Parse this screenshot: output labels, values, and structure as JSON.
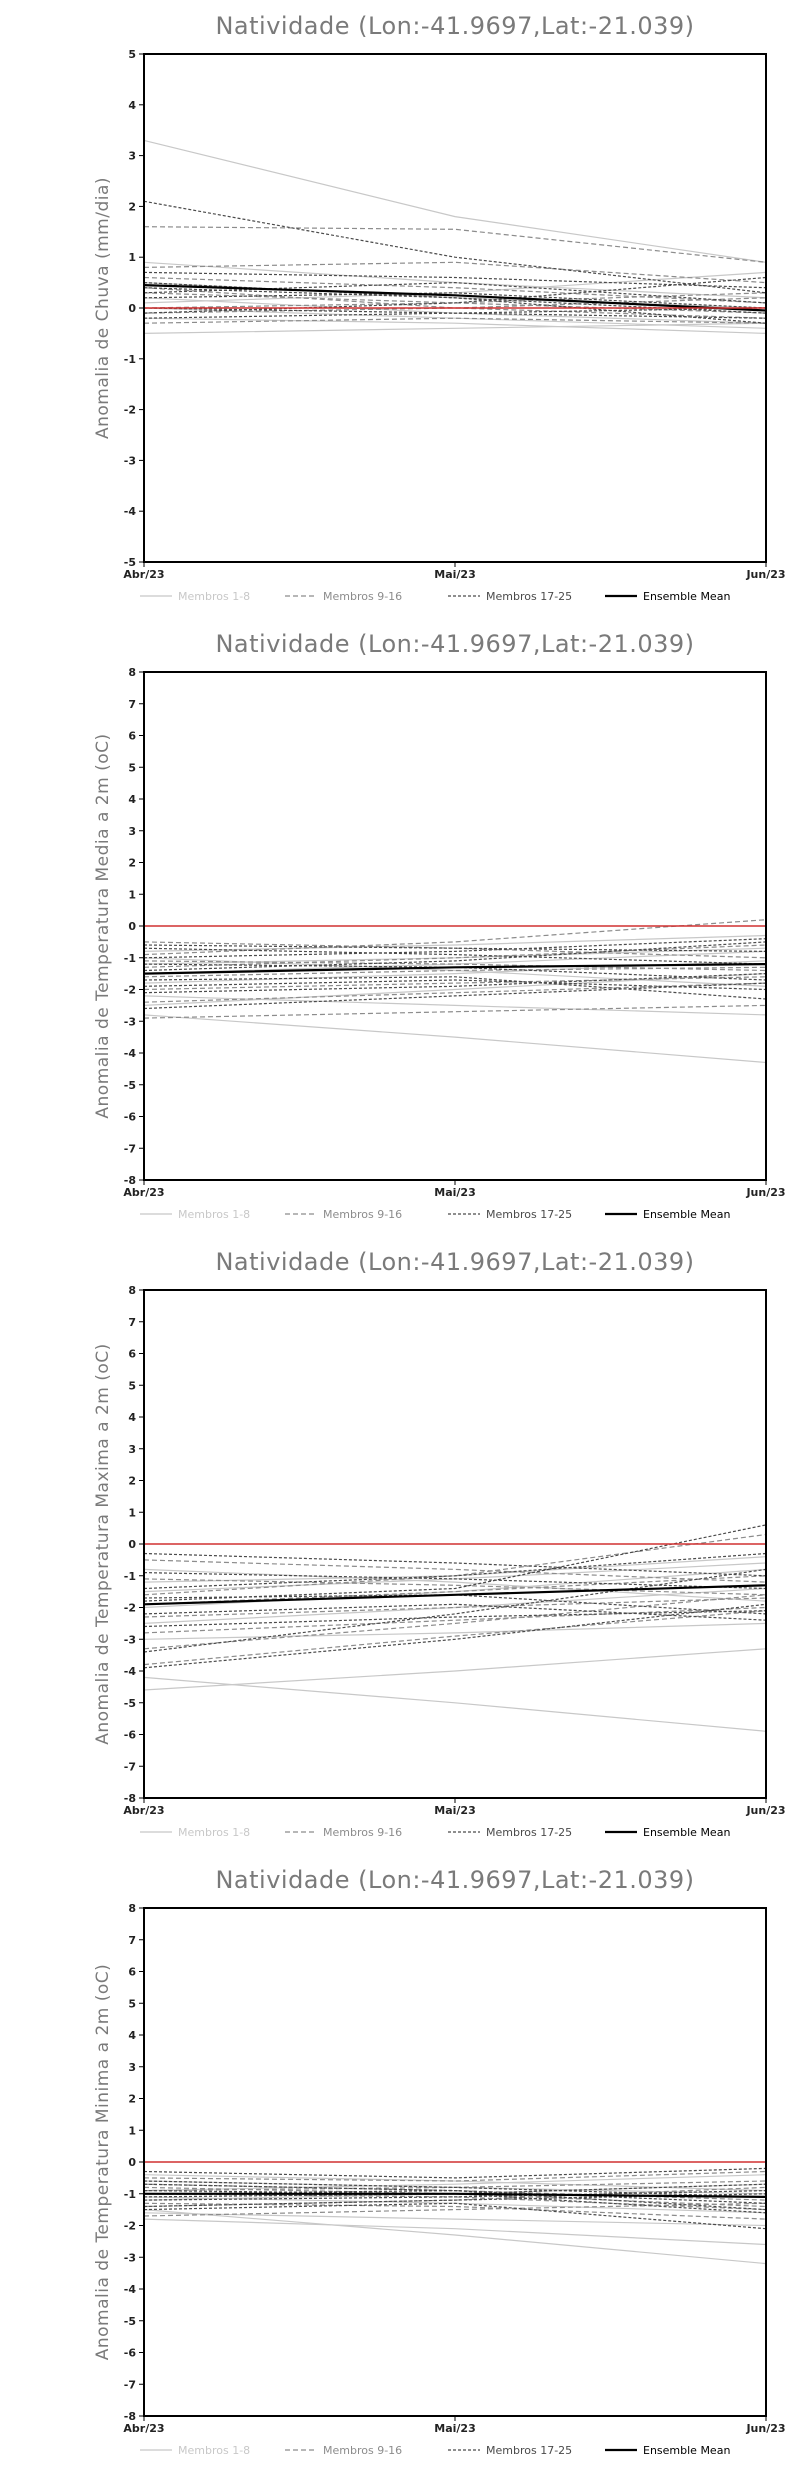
{
  "chart_data": [
    {
      "type": "line",
      "title": "Natividade (Lon:-41.9697,Lat:-21.039)",
      "ylabel": "Anomalia de Chuva (mm/dia)",
      "xlabel": "",
      "x": [
        "Abr/23",
        "Mai/23",
        "Jun/23"
      ],
      "ylim": [
        -5,
        5
      ],
      "yticks": [
        -5,
        -4,
        -3,
        -2,
        -1,
        0,
        1,
        2,
        3,
        4,
        5
      ],
      "legend": [
        "Membros 1-8",
        "Membros 9-16",
        "Membros 17-25",
        "Ensemble Mean"
      ],
      "series": [
        {
          "group": 0,
          "values": [
            3.3,
            1.8,
            0.9
          ]
        },
        {
          "group": 0,
          "values": [
            0.9,
            0.5,
            0.2
          ]
        },
        {
          "group": 0,
          "values": [
            0.2,
            -0.1,
            -0.3
          ]
        },
        {
          "group": 0,
          "values": [
            -0.2,
            -0.3,
            -0.5
          ]
        },
        {
          "group": 0,
          "values": [
            0.5,
            0.2,
            0.0
          ]
        },
        {
          "group": 0,
          "values": [
            -0.5,
            -0.4,
            -0.3
          ]
        },
        {
          "group": 0,
          "values": [
            0.1,
            0.3,
            0.7
          ]
        },
        {
          "group": 0,
          "values": [
            0.0,
            -0.2,
            -0.4
          ]
        },
        {
          "group": 1,
          "values": [
            1.6,
            1.55,
            0.9
          ]
        },
        {
          "group": 1,
          "values": [
            0.6,
            0.4,
            0.1
          ]
        },
        {
          "group": 1,
          "values": [
            0.3,
            0.1,
            -0.1
          ]
        },
        {
          "group": 1,
          "values": [
            -0.1,
            0.0,
            0.2
          ]
        },
        {
          "group": 1,
          "values": [
            0.8,
            0.9,
            0.5
          ]
        },
        {
          "group": 1,
          "values": [
            -0.3,
            -0.2,
            -0.3
          ]
        },
        {
          "group": 1,
          "values": [
            0.4,
            0.0,
            -0.2
          ]
        },
        {
          "group": 1,
          "values": [
            0.0,
            0.1,
            0.3
          ]
        },
        {
          "group": 2,
          "values": [
            2.1,
            1.0,
            0.3
          ]
        },
        {
          "group": 2,
          "values": [
            0.7,
            0.6,
            0.4
          ]
        },
        {
          "group": 2,
          "values": [
            0.2,
            0.3,
            0.0
          ]
        },
        {
          "group": 2,
          "values": [
            -0.1,
            0.1,
            0.6
          ]
        },
        {
          "group": 2,
          "values": [
            0.5,
            0.2,
            -0.1
          ]
        },
        {
          "group": 2,
          "values": [
            0.0,
            -0.1,
            -0.2
          ]
        },
        {
          "group": 2,
          "values": [
            0.3,
            0.5,
            0.1
          ]
        },
        {
          "group": 2,
          "values": [
            -0.2,
            -0.1,
            0.0
          ]
        },
        {
          "group": 2,
          "values": [
            0.4,
            0.2,
            -0.3
          ]
        },
        {
          "group": 3,
          "values": [
            0.45,
            0.25,
            -0.05
          ]
        }
      ]
    },
    {
      "type": "line",
      "title": "Natividade (Lon:-41.9697,Lat:-21.039)",
      "ylabel": "Anomalia de Temperatura Media a 2m (oC)",
      "xlabel": "",
      "x": [
        "Abr/23",
        "Mai/23",
        "Jun/23"
      ],
      "ylim": [
        -8,
        8
      ],
      "yticks": [
        -8,
        -7,
        -6,
        -5,
        -4,
        -3,
        -2,
        -1,
        0,
        1,
        2,
        3,
        4,
        5,
        6,
        7,
        8
      ],
      "legend": [
        "Membros 1-8",
        "Membros 9-16",
        "Membros 17-25",
        "Ensemble Mean"
      ],
      "series": [
        {
          "group": 0,
          "values": [
            -2.8,
            -3.5,
            -4.3
          ]
        },
        {
          "group": 0,
          "values": [
            -1.5,
            -1.2,
            -0.8
          ]
        },
        {
          "group": 0,
          "values": [
            -2.2,
            -2.5,
            -2.8
          ]
        },
        {
          "group": 0,
          "values": [
            -0.8,
            -0.6,
            -0.3
          ]
        },
        {
          "group": 0,
          "values": [
            -1.8,
            -1.5,
            -1.1
          ]
        },
        {
          "group": 0,
          "values": [
            -1.0,
            -1.4,
            -1.9
          ]
        },
        {
          "group": 0,
          "values": [
            -2.5,
            -2.0,
            -1.5
          ]
        },
        {
          "group": 0,
          "values": [
            -1.2,
            -1.0,
            -0.7
          ]
        },
        {
          "group": 1,
          "values": [
            -0.5,
            -0.7,
            -1.0
          ]
        },
        {
          "group": 1,
          "values": [
            -1.3,
            -1.0,
            -0.6
          ]
        },
        {
          "group": 1,
          "values": [
            -2.9,
            -2.7,
            -2.5
          ]
        },
        {
          "group": 1,
          "values": [
            -1.6,
            -1.4,
            -1.3
          ]
        },
        {
          "group": 1,
          "values": [
            -0.9,
            -0.5,
            0.2
          ]
        },
        {
          "group": 1,
          "values": [
            -2.0,
            -1.8,
            -1.6
          ]
        },
        {
          "group": 1,
          "values": [
            -1.1,
            -1.2,
            -1.4
          ]
        },
        {
          "group": 1,
          "values": [
            -2.4,
            -2.1,
            -1.8
          ]
        },
        {
          "group": 2,
          "values": [
            -0.7,
            -0.9,
            -1.2
          ]
        },
        {
          "group": 2,
          "values": [
            -1.4,
            -1.1,
            -0.5
          ]
        },
        {
          "group": 2,
          "values": [
            -2.6,
            -2.2,
            -1.8
          ]
        },
        {
          "group": 2,
          "values": [
            -1.9,
            -1.7,
            -2.0
          ]
        },
        {
          "group": 2,
          "values": [
            -1.0,
            -0.8,
            -0.4
          ]
        },
        {
          "group": 2,
          "values": [
            -1.7,
            -1.6,
            -2.3
          ]
        },
        {
          "group": 2,
          "values": [
            -0.6,
            -0.7,
            -0.8
          ]
        },
        {
          "group": 2,
          "values": [
            -2.1,
            -1.9,
            -1.5
          ]
        },
        {
          "group": 2,
          "values": [
            -1.2,
            -1.3,
            -1.7
          ]
        },
        {
          "group": 3,
          "values": [
            -1.5,
            -1.3,
            -1.2
          ]
        }
      ]
    },
    {
      "type": "line",
      "title": "Natividade (Lon:-41.9697,Lat:-21.039)",
      "ylabel": "Anomalia de Temperatura Maxima a 2m (oC)",
      "xlabel": "",
      "x": [
        "Abr/23",
        "Mai/23",
        "Jun/23"
      ],
      "ylim": [
        -8,
        8
      ],
      "yticks": [
        -8,
        -7,
        -6,
        -5,
        -4,
        -3,
        -2,
        -1,
        0,
        1,
        2,
        3,
        4,
        5,
        6,
        7,
        8
      ],
      "legend": [
        "Membros 1-8",
        "Membros 9-16",
        "Membros 17-25",
        "Ensemble Mean"
      ],
      "series": [
        {
          "group": 0,
          "values": [
            -4.2,
            -5.0,
            -5.9
          ]
        },
        {
          "group": 0,
          "values": [
            -4.6,
            -4.0,
            -3.3
          ]
        },
        {
          "group": 0,
          "values": [
            -2.5,
            -2.0,
            -1.4
          ]
        },
        {
          "group": 0,
          "values": [
            -1.5,
            -1.1,
            -0.6
          ]
        },
        {
          "group": 0,
          "values": [
            -3.0,
            -2.8,
            -2.5
          ]
        },
        {
          "group": 0,
          "values": [
            -0.8,
            -1.2,
            -1.8
          ]
        },
        {
          "group": 0,
          "values": [
            -2.0,
            -1.5,
            -0.8
          ]
        },
        {
          "group": 0,
          "values": [
            -1.2,
            -1.0,
            -0.4
          ]
        },
        {
          "group": 1,
          "values": [
            -3.8,
            -2.9,
            -2.1
          ]
        },
        {
          "group": 1,
          "values": [
            -1.6,
            -1.0,
            0.3
          ]
        },
        {
          "group": 1,
          "values": [
            -2.3,
            -2.0,
            -1.7
          ]
        },
        {
          "group": 1,
          "values": [
            -0.5,
            -0.8,
            -1.2
          ]
        },
        {
          "group": 1,
          "values": [
            -1.9,
            -1.5,
            -1.0
          ]
        },
        {
          "group": 1,
          "values": [
            -2.8,
            -2.4,
            -2.0
          ]
        },
        {
          "group": 1,
          "values": [
            -1.1,
            -1.3,
            -1.6
          ]
        },
        {
          "group": 1,
          "values": [
            -3.3,
            -2.5,
            -1.6
          ]
        },
        {
          "group": 2,
          "values": [
            -3.4,
            -2.2,
            -0.8
          ]
        },
        {
          "group": 2,
          "values": [
            -1.8,
            -1.4,
            0.6
          ]
        },
        {
          "group": 2,
          "values": [
            -0.3,
            -0.6,
            -1.0
          ]
        },
        {
          "group": 2,
          "values": [
            -2.2,
            -1.9,
            -2.4
          ]
        },
        {
          "group": 2,
          "values": [
            -1.4,
            -1.0,
            -0.3
          ]
        },
        {
          "group": 2,
          "values": [
            -2.6,
            -2.3,
            -2.1
          ]
        },
        {
          "group": 2,
          "values": [
            -0.9,
            -1.1,
            -1.4
          ]
        },
        {
          "group": 2,
          "values": [
            -1.7,
            -1.6,
            -2.2
          ]
        },
        {
          "group": 2,
          "values": [
            -3.9,
            -3.0,
            -1.9
          ]
        },
        {
          "group": 3,
          "values": [
            -1.9,
            -1.6,
            -1.3
          ]
        }
      ]
    },
    {
      "type": "line",
      "title": "Natividade (Lon:-41.9697,Lat:-21.039)",
      "ylabel": "Anomalia de Temperatura Minima a 2m (oC)",
      "xlabel": "",
      "x": [
        "Abr/23",
        "Mai/23",
        "Jun/23"
      ],
      "ylim": [
        -8,
        8
      ],
      "yticks": [
        -8,
        -7,
        -6,
        -5,
        -4,
        -3,
        -2,
        -1,
        0,
        1,
        2,
        3,
        4,
        5,
        6,
        7,
        8
      ],
      "legend": [
        "Membros 1-8",
        "Membros 9-16",
        "Membros 17-25",
        "Ensemble Mean"
      ],
      "series": [
        {
          "group": 0,
          "values": [
            -1.5,
            -2.3,
            -3.2
          ]
        },
        {
          "group": 0,
          "values": [
            -0.9,
            -0.7,
            -0.4
          ]
        },
        {
          "group": 0,
          "values": [
            -1.8,
            -2.1,
            -2.6
          ]
        },
        {
          "group": 0,
          "values": [
            -0.6,
            -0.8,
            -1.0
          ]
        },
        {
          "group": 0,
          "values": [
            -1.2,
            -1.0,
            -0.7
          ]
        },
        {
          "group": 0,
          "values": [
            -1.6,
            -1.8,
            -2.0
          ]
        },
        {
          "group": 0,
          "values": [
            -0.4,
            -0.6,
            -0.9
          ]
        },
        {
          "group": 0,
          "values": [
            -1.1,
            -1.3,
            -1.6
          ]
        },
        {
          "group": 1,
          "values": [
            -0.7,
            -0.9,
            -1.2
          ]
        },
        {
          "group": 1,
          "values": [
            -1.4,
            -1.2,
            -0.8
          ]
        },
        {
          "group": 1,
          "values": [
            -1.0,
            -1.1,
            -1.5
          ]
        },
        {
          "group": 1,
          "values": [
            -0.5,
            -0.6,
            -0.3
          ]
        },
        {
          "group": 1,
          "values": [
            -1.7,
            -1.5,
            -1.3
          ]
        },
        {
          "group": 1,
          "values": [
            -0.8,
            -1.0,
            -1.4
          ]
        },
        {
          "group": 1,
          "values": [
            -1.3,
            -1.4,
            -1.8
          ]
        },
        {
          "group": 1,
          "values": [
            -0.9,
            -0.8,
            -0.6
          ]
        },
        {
          "group": 2,
          "values": [
            -0.6,
            -0.8,
            -1.1
          ]
        },
        {
          "group": 2,
          "values": [
            -1.2,
            -1.1,
            -0.9
          ]
        },
        {
          "group": 2,
          "values": [
            -0.9,
            -1.0,
            -1.6
          ]
        },
        {
          "group": 2,
          "values": [
            -1.5,
            -1.3,
            -2.1
          ]
        },
        {
          "group": 2,
          "values": [
            -0.3,
            -0.5,
            -0.2
          ]
        },
        {
          "group": 2,
          "values": [
            -1.0,
            -0.9,
            -1.3
          ]
        },
        {
          "group": 2,
          "values": [
            -1.4,
            -1.2,
            -1.0
          ]
        },
        {
          "group": 2,
          "values": [
            -0.7,
            -0.9,
            -1.5
          ]
        },
        {
          "group": 2,
          "values": [
            -1.1,
            -1.0,
            -0.7
          ]
        },
        {
          "group": 3,
          "values": [
            -1.0,
            -1.0,
            -1.1
          ]
        }
      ]
    }
  ],
  "style": {
    "zero_line_color": "#d03030",
    "group_colors": [
      "#c8c8c8",
      "#8c8c8c",
      "#4a4a4a",
      "#000000"
    ],
    "legend_text_colors": [
      "#c8c8c8",
      "#8c8c8c",
      "#4a4a4a",
      "#000000"
    ]
  }
}
